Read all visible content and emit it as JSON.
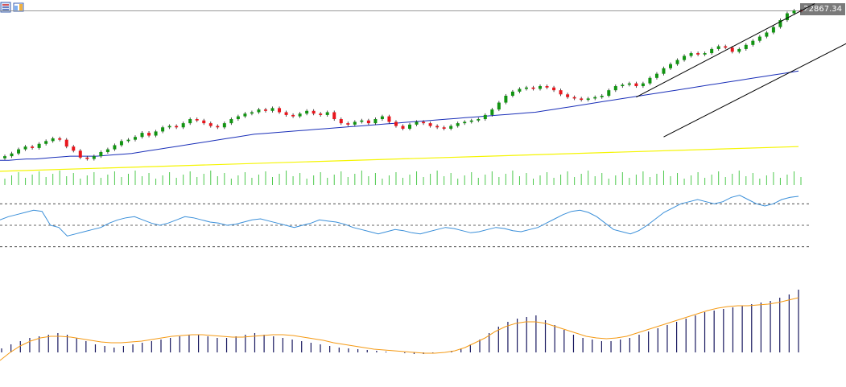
{
  "toolbar": {
    "icons": [
      "candles-list-icon",
      "window-layout-icon"
    ]
  },
  "price_label": "22867.34",
  "colors": {
    "bull": "#129412",
    "bear": "#e8161d",
    "ma_fast": "#1a2fb8",
    "ma_slow": "#f5f500",
    "volume": "#4cc94c",
    "rsi": "#3a8fd9",
    "macd_hist": "#17175e",
    "macd_signal": "#f59a14",
    "trendline": "#000000",
    "current_price_line": "#8a8a8a"
  },
  "chart_data": {
    "type": "line",
    "panels": [
      "price-candlestick",
      "volume",
      "rsi",
      "macd"
    ],
    "candles_close": [
      21810,
      21830,
      21860,
      21880,
      21870,
      21900,
      21920,
      21940,
      21930,
      21880,
      21850,
      21800,
      21790,
      21810,
      21840,
      21860,
      21890,
      21920,
      21930,
      21950,
      21980,
      21960,
      21990,
      22020,
      22030,
      22020,
      22050,
      22080,
      22070,
      22050,
      22030,
      22020,
      22050,
      22080,
      22100,
      22120,
      22130,
      22150,
      22140,
      22160,
      22130,
      22110,
      22100,
      22120,
      22140,
      22120,
      22110,
      22130,
      22080,
      22050,
      22040,
      22060,
      22070,
      22050,
      22080,
      22100,
      22060,
      22030,
      22010,
      22040,
      22060,
      22050,
      22030,
      22020,
      22010,
      22030,
      22050,
      22060,
      22070,
      22080,
      22110,
      22150,
      22200,
      22250,
      22280,
      22300,
      22310,
      22300,
      22320,
      22310,
      22290,
      22260,
      22240,
      22230,
      22220,
      22230,
      22240,
      22250,
      22290,
      22320,
      22330,
      22340,
      22320,
      22340,
      22380,
      22410,
      22450,
      22480,
      22510,
      22540,
      22560,
      22550,
      22560,
      22590,
      22610,
      22600,
      22570,
      22590,
      22620,
      22650,
      22680,
      22710,
      22750,
      22800,
      22850,
      22870,
      22867
    ],
    "ma_fast": [
      21780,
      21780,
      21785,
      21790,
      21790,
      21795,
      21800,
      21805,
      21810,
      21810,
      21810,
      21810,
      21815,
      21820,
      21825,
      21830,
      21840,
      21850,
      21860,
      21870,
      21880,
      21890,
      21900,
      21910,
      21920,
      21930,
      21940,
      21950,
      21960,
      21970,
      21975,
      21980,
      21985,
      21990,
      21995,
      22000,
      22005,
      22010,
      22015,
      22020,
      22025,
      22030,
      22035,
      22040,
      22045,
      22050,
      22055,
      22060,
      22065,
      22070,
      22075,
      22080,
      22085,
      22090,
      22095,
      22100,
      22105,
      22110,
      22115,
      22120,
      22125,
      22130,
      22140,
      22150,
      22160,
      22170,
      22180,
      22190,
      22200,
      22210,
      22220,
      22230,
      22240,
      22250,
      22260,
      22270,
      22280,
      22290,
      22300,
      22310,
      22320,
      22330,
      22340,
      22350,
      22360,
      22370,
      22380,
      22390,
      22400,
      22410,
      22420,
      22430
    ],
    "ma_slow": [
      21700,
      21880
    ],
    "rsi_levels": [
      70,
      50,
      30
    ],
    "rsi": [
      55,
      58,
      60,
      62,
      64,
      63,
      50,
      48,
      40,
      42,
      44,
      46,
      48,
      52,
      55,
      57,
      58,
      55,
      52,
      50,
      52,
      55,
      58,
      57,
      55,
      53,
      52,
      50,
      51,
      53,
      55,
      56,
      54,
      52,
      50,
      48,
      50,
      52,
      55,
      54,
      53,
      51,
      48,
      46,
      44,
      42,
      44,
      46,
      45,
      43,
      42,
      44,
      46,
      48,
      47,
      45,
      43,
      44,
      46,
      48,
      47,
      45,
      44,
      46,
      48,
      52,
      56,
      60,
      63,
      64,
      62,
      58,
      52,
      46,
      44,
      42,
      45,
      50,
      56,
      62,
      66,
      70,
      72,
      74,
      72,
      70,
      72,
      76,
      78,
      74,
      70,
      68,
      70,
      74,
      76,
      77
    ],
    "macd_hist": [
      5,
      10,
      14,
      18,
      20,
      22,
      24,
      22,
      18,
      14,
      10,
      8,
      6,
      8,
      10,
      12,
      14,
      16,
      18,
      20,
      22,
      22,
      20,
      18,
      18,
      20,
      22,
      24,
      22,
      20,
      18,
      16,
      14,
      12,
      10,
      8,
      6,
      5,
      4,
      3,
      2,
      1,
      0,
      -1,
      -2,
      -2,
      -1,
      0,
      2,
      5,
      10,
      16,
      24,
      32,
      38,
      42,
      44,
      46,
      40,
      34,
      28,
      22,
      18,
      16,
      14,
      14,
      16,
      18,
      22,
      26,
      30,
      34,
      38,
      42,
      46,
      50,
      52,
      54,
      56,
      58,
      60,
      62,
      64,
      68,
      72,
      78
    ],
    "macd_signal": [
      -10,
      0,
      8,
      14,
      18,
      20,
      20,
      19,
      17,
      15,
      13,
      12,
      12,
      13,
      14,
      16,
      18,
      20,
      21,
      22,
      22,
      21,
      20,
      19,
      19,
      20,
      21,
      22,
      22,
      21,
      19,
      17,
      15,
      12,
      10,
      8,
      6,
      4,
      3,
      2,
      1,
      0,
      -1,
      -1,
      0,
      2,
      6,
      12,
      18,
      26,
      32,
      36,
      38,
      38,
      36,
      32,
      28,
      24,
      20,
      18,
      17,
      18,
      20,
      24,
      28,
      32,
      36,
      40,
      44,
      48,
      52,
      55,
      57,
      58,
      58,
      59,
      60,
      62,
      65,
      68
    ]
  }
}
